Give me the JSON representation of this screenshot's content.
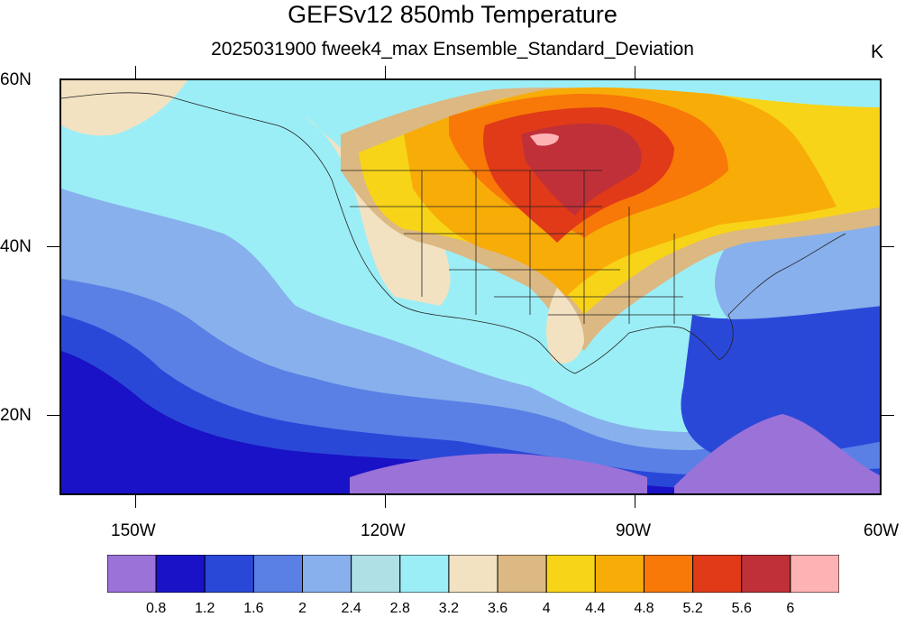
{
  "title": "GEFSv12 850mb Temperature",
  "subtitle": "2025031900 fweek4_max Ensemble_Standard_Deviation",
  "units": "K",
  "lat_labels": [
    "60N",
    "40N",
    "20N"
  ],
  "lon_labels": [
    "150W",
    "120W",
    "90W",
    "60W"
  ],
  "colorbar": {
    "colors": [
      "#9b72d8",
      "#1a12c6",
      "#2a48d8",
      "#5a80e6",
      "#88b0ec",
      "#aee0e6",
      "#9ceef6",
      "#f2e2c2",
      "#dcb882",
      "#f8d418",
      "#f8ac08",
      "#f87808",
      "#e03a18",
      "#c03038",
      "#ffb2b4"
    ],
    "labels": [
      "0.8",
      "1.2",
      "1.6",
      "2",
      "2.4",
      "2.8",
      "3.2",
      "3.6",
      "4",
      "4.4",
      "4.8",
      "5.2",
      "5.6",
      "6"
    ]
  }
}
